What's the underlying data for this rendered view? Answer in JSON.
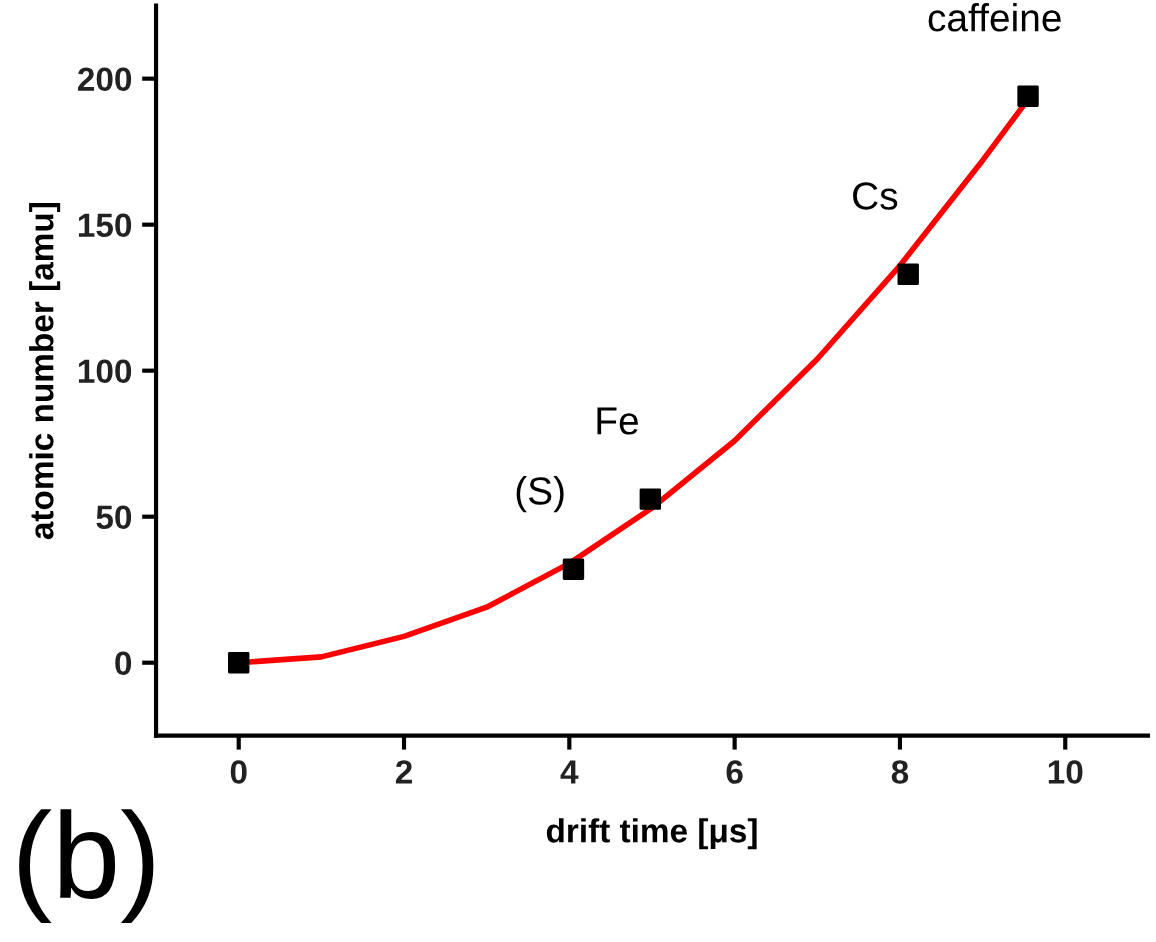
{
  "chart_data": {
    "type": "scatter",
    "xlabel": "drift time [μs]",
    "ylabel": "atomic number [amu]",
    "xlim": [
      -1,
      11
    ],
    "ylim": [
      -25,
      225
    ],
    "xticks": [
      0,
      2,
      4,
      6,
      8,
      10
    ],
    "yticks": [
      0,
      50,
      100,
      150,
      200
    ],
    "grid": false,
    "legend": false,
    "series": [
      {
        "color": "#000000",
        "marker": "square",
        "x": [
          0,
          4.05,
          4.98,
          8.1,
          9.55
        ],
        "values": [
          0,
          32,
          56,
          133,
          194
        ]
      },
      {
        "type": "line",
        "color": "#ff0000",
        "marker": "none",
        "line_style": "solid",
        "x": [
          0,
          1,
          2,
          3,
          4,
          5,
          6,
          7,
          8,
          9,
          9.5
        ],
        "values": [
          0,
          2,
          9,
          19,
          34,
          53,
          76,
          104,
          136,
          172,
          191
        ]
      }
    ],
    "annotations": [
      {
        "text": "(S)",
        "x": 4.05,
        "y": 32
      },
      {
        "text": "Fe",
        "x": 4.98,
        "y": 56
      },
      {
        "text": "Cs",
        "x": 8.1,
        "y": 133
      },
      {
        "text": "caffeine",
        "x": 9.55,
        "y": 194
      },
      "(b)"
    ]
  }
}
